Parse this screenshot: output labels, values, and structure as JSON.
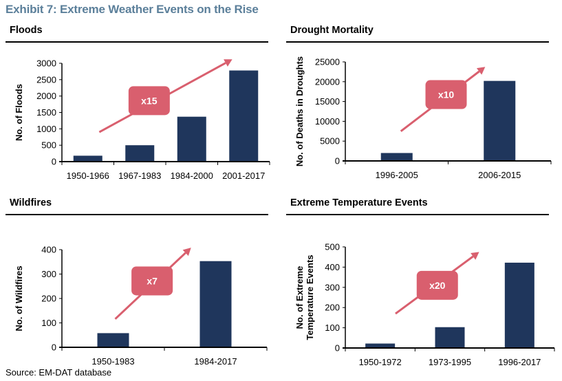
{
  "exhibit_title": "Exhibit 7: Extreme Weather Events on the Rise",
  "source": "Source: EM-DAT database",
  "colors": {
    "bar": "#1f365c",
    "arrow": "#d95f6e",
    "badge": "#d95f6e",
    "title": "#5b7f9a"
  },
  "chart_data": [
    {
      "type": "bar",
      "title": "Floods",
      "xlabel": "",
      "ylabel": "No. of Floods",
      "categories": [
        "1950-1966",
        "1967-1983",
        "1984-2000",
        "2001-2017"
      ],
      "values": [
        180,
        500,
        1370,
        2780
      ],
      "ylim": [
        0,
        3000
      ],
      "yticks": [
        "0",
        "500",
        "1000",
        "1500",
        "2000",
        "2500",
        "3000"
      ],
      "annotation": "x15",
      "grid": false
    },
    {
      "type": "bar",
      "title": "Drought Mortality",
      "xlabel": "",
      "ylabel": "No. of Deaths in Droughts",
      "categories": [
        "1996-2005",
        "2006-2015"
      ],
      "values": [
        2000,
        20200
      ],
      "ylim": [
        0,
        25000
      ],
      "yticks": [
        "0",
        "5000",
        "10000",
        "15000",
        "20000",
        "25000"
      ],
      "annotation": "x10",
      "grid": false
    },
    {
      "type": "bar",
      "title": "Wildfires",
      "xlabel": "",
      "ylabel": "No. of Wildfires",
      "categories": [
        "1950-1983",
        "1984-2017"
      ],
      "values": [
        58,
        353
      ],
      "ylim": [
        0,
        400
      ],
      "yticks": [
        "0",
        "100",
        "200",
        "300",
        "400"
      ],
      "annotation": "x7",
      "grid": false
    },
    {
      "type": "bar",
      "title": "Extreme Temperature Events",
      "xlabel": "",
      "ylabel": [
        "No. of Extreme",
        "Temperature Events"
      ],
      "categories": [
        "1950-1972",
        "1973-1995",
        "1996-2017"
      ],
      "values": [
        22,
        103,
        422
      ],
      "ylim": [
        0,
        500
      ],
      "yticks": [
        "0",
        "100",
        "200",
        "300",
        "400",
        "500"
      ],
      "annotation": "x20",
      "grid": false
    }
  ]
}
